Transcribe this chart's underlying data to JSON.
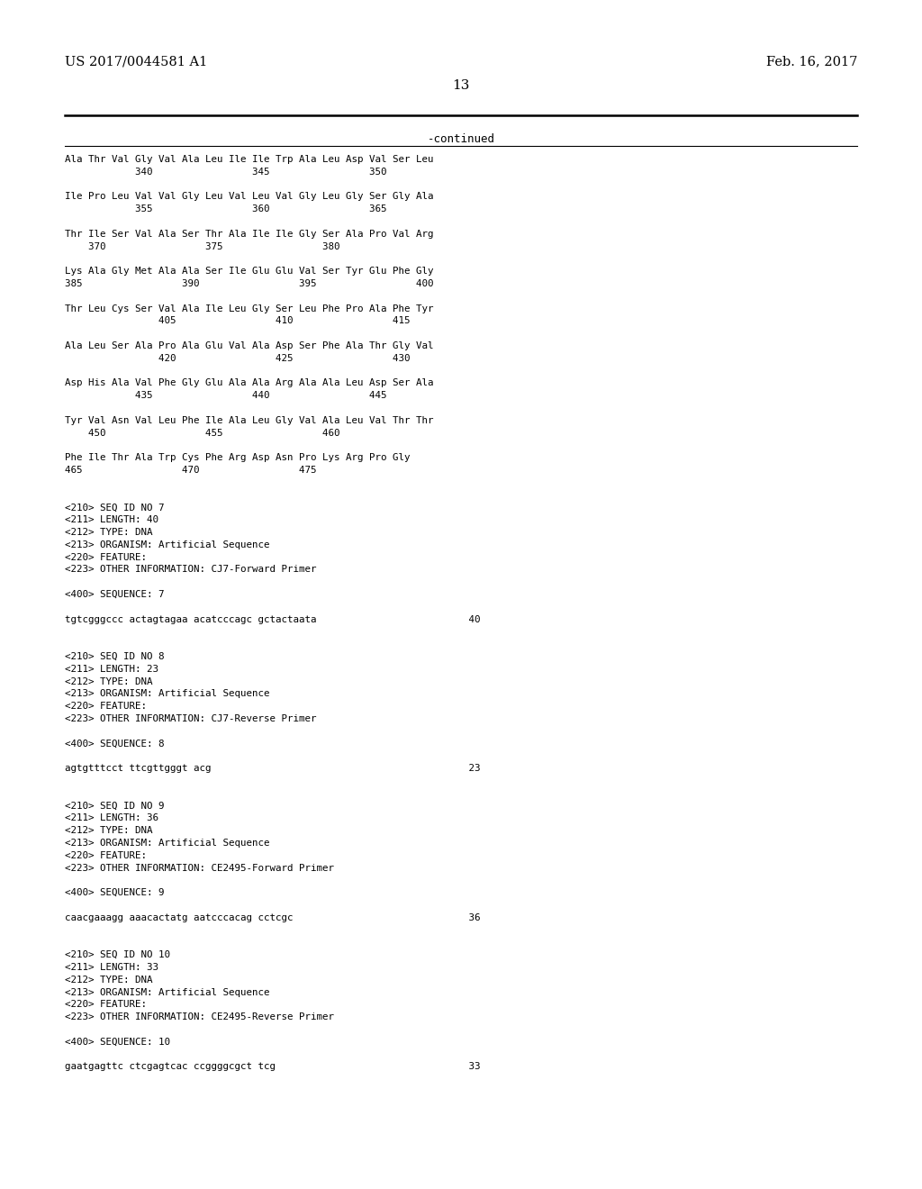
{
  "background_color": "#ffffff",
  "header_left": "US 2017/0044581 A1",
  "header_right": "Feb. 16, 2017",
  "page_number": "13",
  "continued_label": "-continued",
  "content": [
    "Ala Thr Val Gly Val Ala Leu Ile Ile Trp Ala Leu Asp Val Ser Leu",
    "            340                 345                 350",
    "",
    "Ile Pro Leu Val Val Gly Leu Val Leu Val Gly Leu Gly Ser Gly Ala",
    "            355                 360                 365",
    "",
    "Thr Ile Ser Val Ala Ser Thr Ala Ile Ile Gly Ser Ala Pro Val Arg",
    "    370                 375                 380",
    "",
    "Lys Ala Gly Met Ala Ala Ser Ile Glu Glu Val Ser Tyr Glu Phe Gly",
    "385                 390                 395                 400",
    "",
    "Thr Leu Cys Ser Val Ala Ile Leu Gly Ser Leu Phe Pro Ala Phe Tyr",
    "                405                 410                 415",
    "",
    "Ala Leu Ser Ala Pro Ala Glu Val Ala Asp Ser Phe Ala Thr Gly Val",
    "                420                 425                 430",
    "",
    "Asp His Ala Val Phe Gly Glu Ala Ala Arg Ala Ala Leu Asp Ser Ala",
    "            435                 440                 445",
    "",
    "Tyr Val Asn Val Leu Phe Ile Ala Leu Gly Val Ala Leu Val Thr Thr",
    "    450                 455                 460",
    "",
    "Phe Ile Thr Ala Trp Cys Phe Arg Asp Asn Pro Lys Arg Pro Gly",
    "465                 470                 475",
    "",
    "",
    "<210> SEQ ID NO 7",
    "<211> LENGTH: 40",
    "<212> TYPE: DNA",
    "<213> ORGANISM: Artificial Sequence",
    "<220> FEATURE:",
    "<223> OTHER INFORMATION: CJ7-Forward Primer",
    "",
    "<400> SEQUENCE: 7",
    "",
    "tgtcgggccc actagtagaa acatcccagc gctactaata                          40",
    "",
    "",
    "<210> SEQ ID NO 8",
    "<211> LENGTH: 23",
    "<212> TYPE: DNA",
    "<213> ORGANISM: Artificial Sequence",
    "<220> FEATURE:",
    "<223> OTHER INFORMATION: CJ7-Reverse Primer",
    "",
    "<400> SEQUENCE: 8",
    "",
    "agtgtttcct ttcgttgggt acg                                            23",
    "",
    "",
    "<210> SEQ ID NO 9",
    "<211> LENGTH: 36",
    "<212> TYPE: DNA",
    "<213> ORGANISM: Artificial Sequence",
    "<220> FEATURE:",
    "<223> OTHER INFORMATION: CE2495-Forward Primer",
    "",
    "<400> SEQUENCE: 9",
    "",
    "caacgaaagg aaacactatg aatcccacag cctcgc                              36",
    "",
    "",
    "<210> SEQ ID NO 10",
    "<211> LENGTH: 33",
    "<212> TYPE: DNA",
    "<213> ORGANISM: Artificial Sequence",
    "<220> FEATURE:",
    "<223> OTHER INFORMATION: CE2495-Reverse Primer",
    "",
    "<400> SEQUENCE: 10",
    "",
    "gaatgagttc ctcgagtcac ccggggcgct tcg                                 33"
  ]
}
